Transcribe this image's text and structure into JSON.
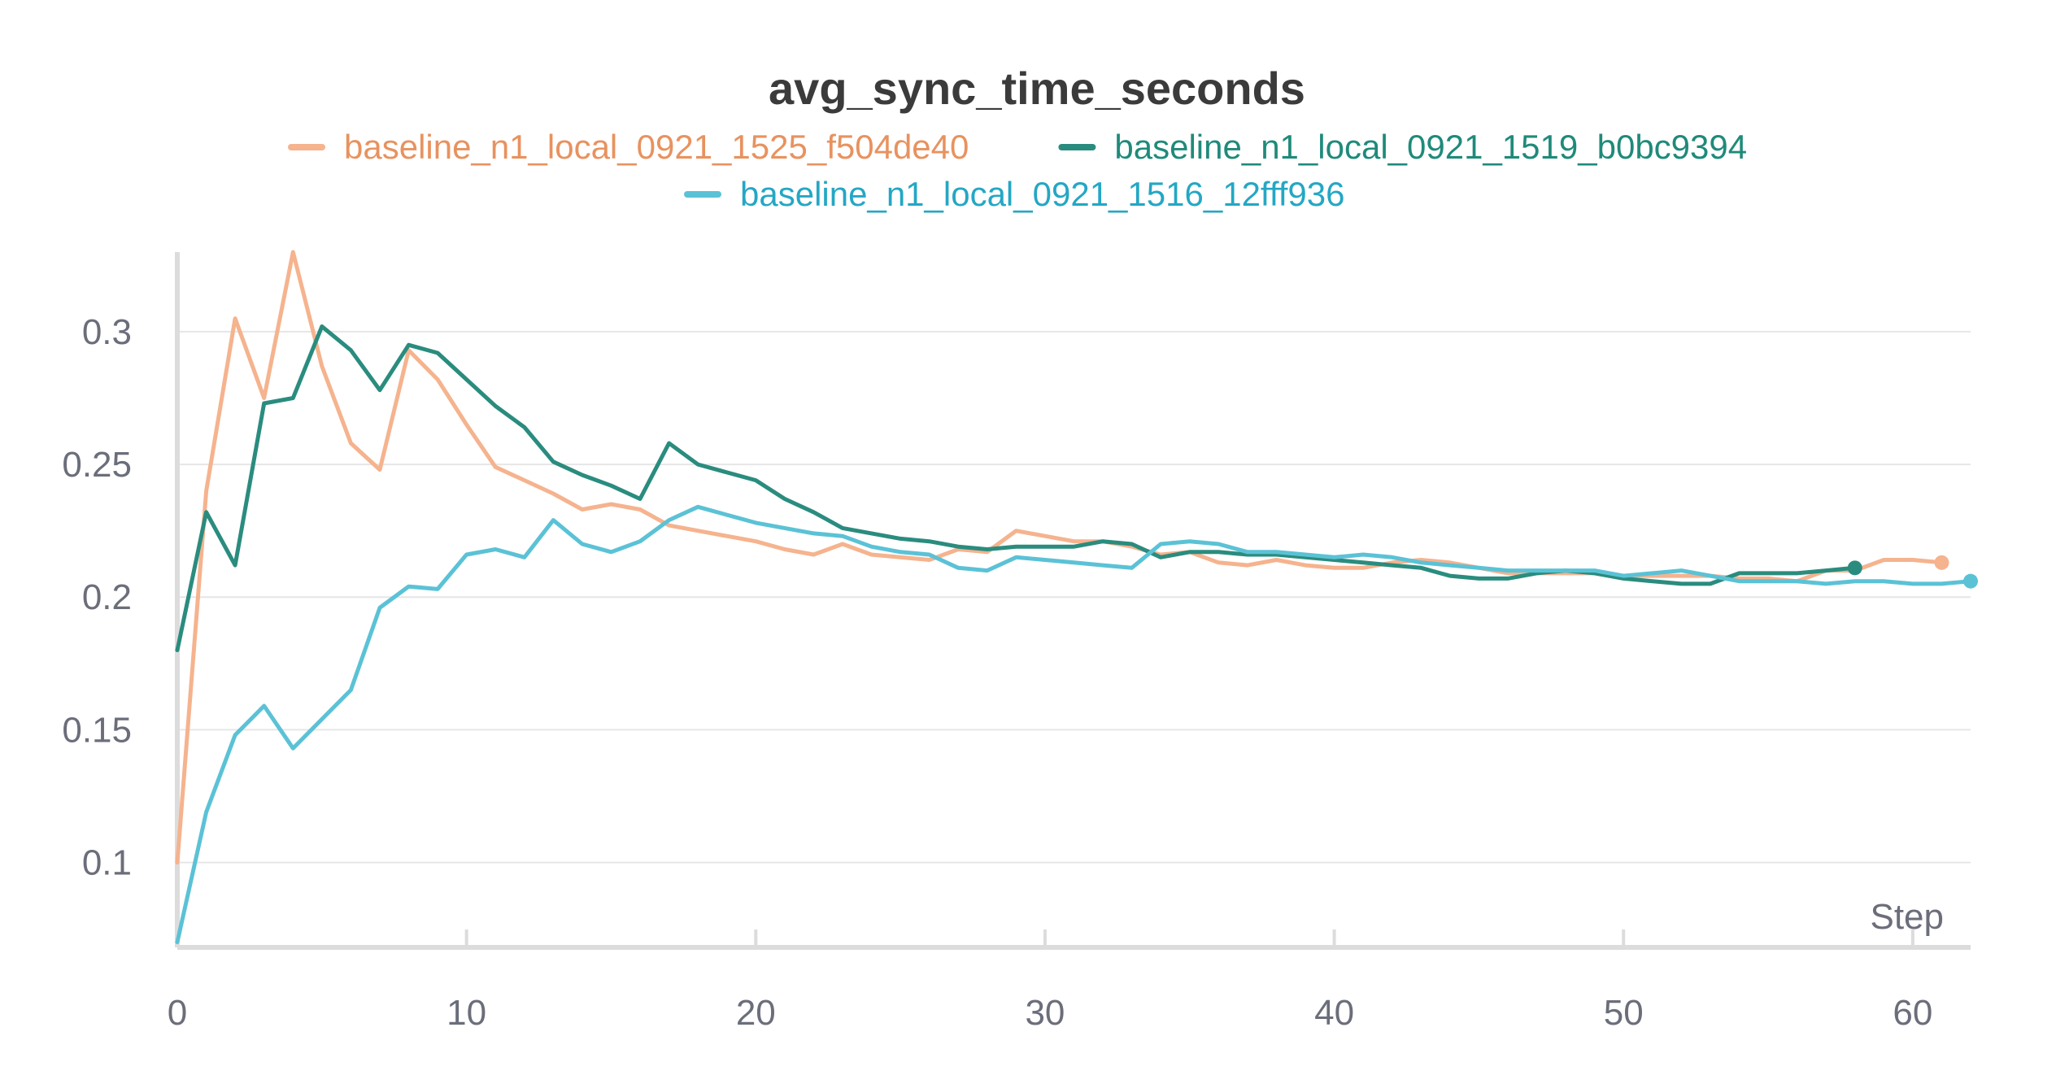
{
  "chart_data": {
    "type": "line",
    "title": "avg_sync_time_seconds",
    "xlabel": "Step",
    "ylabel": "",
    "xlim": [
      0,
      62
    ],
    "ylim": [
      0.068,
      0.33
    ],
    "x_ticks": [
      0,
      10,
      20,
      30,
      40,
      50,
      60
    ],
    "y_ticks": [
      0.1,
      0.15,
      0.2,
      0.25,
      0.3
    ],
    "x_tick_labels": [
      "0",
      "10",
      "20",
      "30",
      "40",
      "50",
      "60"
    ],
    "y_tick_labels": [
      "0.1",
      "0.15",
      "0.2",
      "0.25",
      "0.3"
    ],
    "grid": true,
    "legend_position": "top",
    "series": [
      {
        "name": "baseline_n1_local_0921_1525_f504de40",
        "color": "#f5b38e",
        "label_color": "#e8925f",
        "end_marker": true,
        "x": [
          0,
          1,
          2,
          3,
          4,
          5,
          6,
          7,
          8,
          9,
          10,
          11,
          12,
          13,
          14,
          15,
          16,
          17,
          18,
          19,
          20,
          21,
          22,
          23,
          24,
          25,
          26,
          27,
          28,
          29,
          30,
          31,
          32,
          33,
          34,
          35,
          36,
          37,
          38,
          39,
          40,
          41,
          42,
          43,
          44,
          45,
          46,
          47,
          48,
          49,
          50,
          51,
          52,
          53,
          54,
          55,
          56,
          57,
          58,
          59,
          60,
          61
        ],
        "y": [
          0.1,
          0.24,
          0.305,
          0.275,
          0.33,
          0.287,
          0.258,
          0.248,
          0.293,
          0.282,
          0.265,
          0.249,
          0.244,
          0.239,
          0.233,
          0.235,
          0.233,
          0.227,
          0.225,
          0.223,
          0.221,
          0.218,
          0.216,
          0.22,
          0.216,
          0.215,
          0.214,
          0.218,
          0.217,
          0.225,
          0.223,
          0.221,
          0.221,
          0.219,
          0.216,
          0.217,
          0.213,
          0.212,
          0.214,
          0.212,
          0.211,
          0.211,
          0.213,
          0.214,
          0.213,
          0.211,
          0.209,
          0.209,
          0.209,
          0.209,
          0.208,
          0.208,
          0.208,
          0.208,
          0.207,
          0.207,
          0.206,
          0.21,
          0.21,
          0.214,
          0.214,
          0.213
        ]
      },
      {
        "name": "baseline_n1_local_0921_1519_b0bc9394",
        "color": "#2a8c7e",
        "label_color": "#1f8a7a",
        "end_marker": true,
        "x": [
          0,
          1,
          2,
          3,
          4,
          5,
          6,
          7,
          8,
          9,
          10,
          11,
          12,
          13,
          14,
          15,
          16,
          17,
          18,
          19,
          20,
          21,
          22,
          23,
          24,
          25,
          26,
          27,
          28,
          29,
          30,
          31,
          32,
          33,
          34,
          35,
          36,
          37,
          38,
          39,
          40,
          41,
          42,
          43,
          44,
          45,
          46,
          47,
          48,
          49,
          50,
          51,
          52,
          53,
          54,
          55,
          56,
          57,
          58
        ],
        "y": [
          0.18,
          0.232,
          0.212,
          0.273,
          0.275,
          0.302,
          0.293,
          0.278,
          0.295,
          0.292,
          0.282,
          0.272,
          0.264,
          0.251,
          0.246,
          0.242,
          0.237,
          0.258,
          0.25,
          0.247,
          0.244,
          0.237,
          0.232,
          0.226,
          0.224,
          0.222,
          0.221,
          0.219,
          0.218,
          0.219,
          0.219,
          0.219,
          0.221,
          0.22,
          0.215,
          0.217,
          0.217,
          0.216,
          0.216,
          0.215,
          0.214,
          0.213,
          0.212,
          0.211,
          0.208,
          0.207,
          0.207,
          0.209,
          0.21,
          0.209,
          0.207,
          0.206,
          0.205,
          0.205,
          0.209,
          0.209,
          0.209,
          0.21,
          0.211
        ]
      },
      {
        "name": "baseline_n1_local_0921_1516_12fff936",
        "color": "#5bc2d6",
        "label_color": "#24a7c4",
        "end_marker": true,
        "x": [
          0,
          1,
          2,
          3,
          4,
          5,
          6,
          7,
          8,
          9,
          10,
          11,
          12,
          13,
          14,
          15,
          16,
          17,
          18,
          19,
          20,
          21,
          22,
          23,
          24,
          25,
          26,
          27,
          28,
          29,
          30,
          31,
          32,
          33,
          34,
          35,
          36,
          37,
          38,
          39,
          40,
          41,
          42,
          43,
          44,
          45,
          46,
          47,
          48,
          49,
          50,
          51,
          52,
          53,
          54,
          55,
          56,
          57,
          58,
          59,
          60,
          61,
          62
        ],
        "y": [
          0.07,
          0.119,
          0.148,
          0.159,
          0.143,
          0.154,
          0.165,
          0.196,
          0.204,
          0.203,
          0.216,
          0.218,
          0.215,
          0.229,
          0.22,
          0.217,
          0.221,
          0.229,
          0.234,
          0.231,
          0.228,
          0.226,
          0.224,
          0.223,
          0.219,
          0.217,
          0.216,
          0.211,
          0.21,
          0.215,
          0.214,
          0.213,
          0.212,
          0.211,
          0.22,
          0.221,
          0.22,
          0.217,
          0.217,
          0.216,
          0.215,
          0.216,
          0.215,
          0.213,
          0.212,
          0.211,
          0.21,
          0.21,
          0.21,
          0.21,
          0.208,
          0.209,
          0.21,
          0.208,
          0.206,
          0.206,
          0.206,
          0.205,
          0.206,
          0.206,
          0.205,
          0.205,
          0.206
        ]
      }
    ]
  }
}
